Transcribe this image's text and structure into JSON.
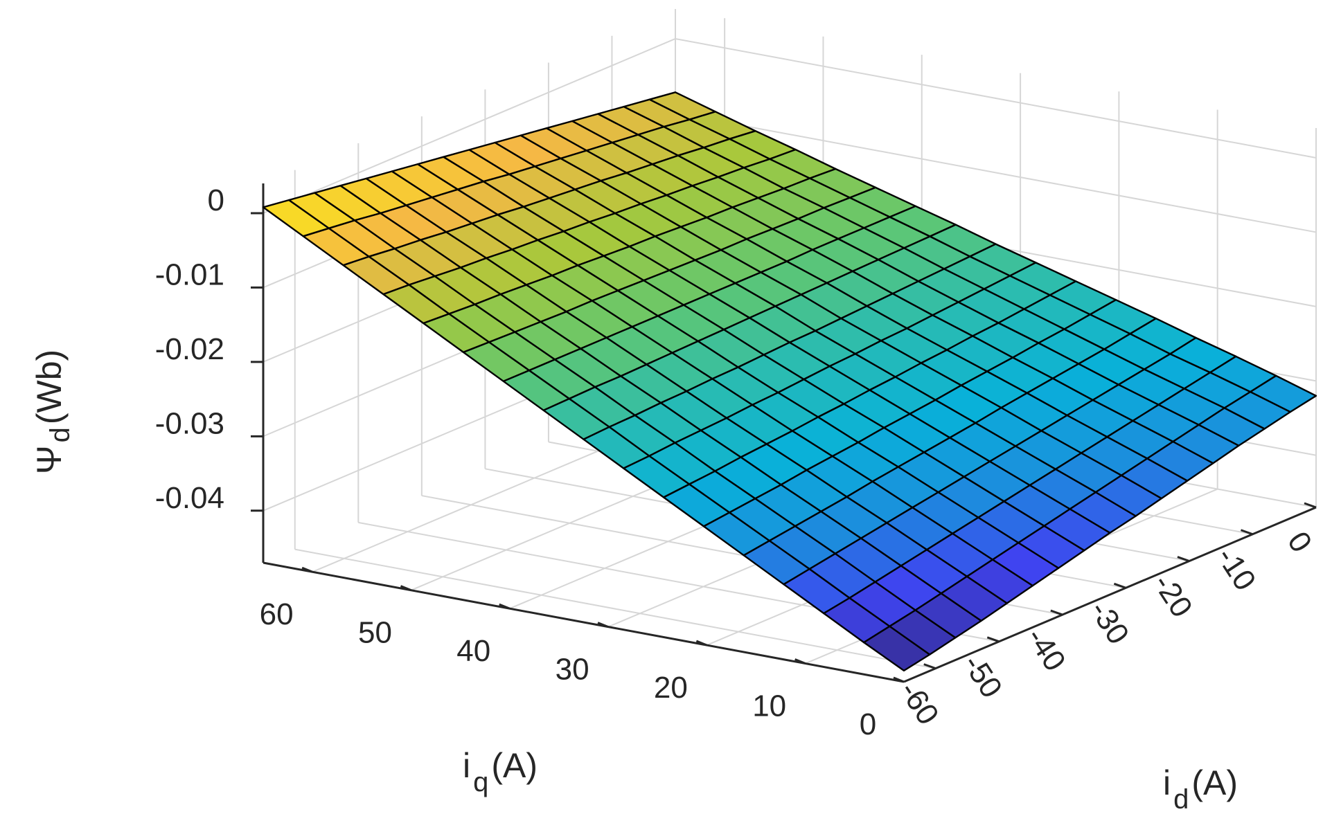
{
  "chart_data": {
    "type": "surface",
    "title": "",
    "xlabel": {
      "main": "i",
      "sub": "d",
      "unit": "(A)"
    },
    "ylabel": {
      "main": "i",
      "sub": "q",
      "unit": "(A)"
    },
    "zlabel": {
      "main": "Ψ",
      "sub": "d",
      "unit": "(Wb)"
    },
    "xlim": [
      -65,
      0
    ],
    "ylim": [
      0,
      65
    ],
    "zlim": [
      -0.047,
      0.004
    ],
    "x_ticks": [
      {
        "value": -60,
        "label": "-60"
      },
      {
        "value": -50,
        "label": "-50"
      },
      {
        "value": -40,
        "label": "-40"
      },
      {
        "value": -30,
        "label": "-30"
      },
      {
        "value": -20,
        "label": "-20"
      },
      {
        "value": -10,
        "label": "-10"
      },
      {
        "value": 0,
        "label": "0"
      }
    ],
    "y_ticks": [
      {
        "value": 0,
        "label": "0"
      },
      {
        "value": 10,
        "label": "10"
      },
      {
        "value": 20,
        "label": "20"
      },
      {
        "value": 30,
        "label": "30"
      },
      {
        "value": 40,
        "label": "40"
      },
      {
        "value": 50,
        "label": "50"
      },
      {
        "value": 60,
        "label": "60"
      }
    ],
    "z_ticks": [
      {
        "value": -0.04,
        "label": "-0.04"
      },
      {
        "value": -0.03,
        "label": "-0.03"
      },
      {
        "value": -0.02,
        "label": "-0.02"
      },
      {
        "value": -0.01,
        "label": "-0.01"
      },
      {
        "value": 0,
        "label": "0"
      }
    ],
    "grid": true,
    "colormap": "parula",
    "colormap_stops": [
      "#352a87",
      "#3f44f0",
      "#1c8ddd",
      "#09b1d9",
      "#2bbcb0",
      "#62c76f",
      "#a8c83c",
      "#f5b845",
      "#f9e71b"
    ],
    "mesh_color": "#000000",
    "x": [
      -65,
      -60.94,
      -56.88,
      -52.81,
      -48.75,
      -44.69,
      -40.63,
      -36.56,
      -32.5,
      -28.44,
      -24.38,
      -20.31,
      -16.25,
      -12.19,
      -8.13,
      -4.06,
      0
    ],
    "y": [
      0,
      4.06,
      8.13,
      12.19,
      16.25,
      20.31,
      24.38,
      28.44,
      32.5,
      36.56,
      40.63,
      44.69,
      48.75,
      52.81,
      56.88,
      60.94,
      65
    ],
    "z": [
      [
        -0.0455,
        -0.0448,
        -0.044,
        -0.0432,
        -0.0423,
        -0.0414,
        -0.0405,
        -0.0396,
        -0.0387,
        -0.0379,
        -0.037,
        -0.0361,
        -0.0352,
        -0.0343,
        -0.0335,
        -0.0327,
        -0.032
      ],
      [
        -0.0427,
        -0.042,
        -0.0413,
        -0.0405,
        -0.0397,
        -0.0389,
        -0.0381,
        -0.0373,
        -0.0365,
        -0.0357,
        -0.0349,
        -0.0341,
        -0.0333,
        -0.0325,
        -0.0317,
        -0.031,
        -0.0303
      ],
      [
        -0.0398,
        -0.0392,
        -0.0385,
        -0.0378,
        -0.0371,
        -0.0364,
        -0.0357,
        -0.035,
        -0.0343,
        -0.0336,
        -0.0329,
        -0.0322,
        -0.0315,
        -0.0308,
        -0.0301,
        -0.0294,
        -0.0287
      ],
      [
        -0.0369,
        -0.0363,
        -0.0357,
        -0.0351,
        -0.0345,
        -0.0339,
        -0.0333,
        -0.0327,
        -0.0321,
        -0.0315,
        -0.0309,
        -0.0303,
        -0.0297,
        -0.0291,
        -0.0285,
        -0.0279,
        -0.0272
      ],
      [
        -0.034,
        -0.0335,
        -0.033,
        -0.0325,
        -0.032,
        -0.0314,
        -0.0309,
        -0.0304,
        -0.0299,
        -0.0294,
        -0.0288,
        -0.0283,
        -0.0278,
        -0.0273,
        -0.0268,
        -0.0262,
        -0.0256
      ],
      [
        -0.0311,
        -0.0307,
        -0.0303,
        -0.0299,
        -0.0294,
        -0.029,
        -0.0286,
        -0.0281,
        -0.0277,
        -0.0273,
        -0.0268,
        -0.0264,
        -0.026,
        -0.0255,
        -0.0251,
        -0.0246,
        -0.0241
      ],
      [
        -0.0282,
        -0.0279,
        -0.0276,
        -0.0272,
        -0.0269,
        -0.0266,
        -0.0262,
        -0.0259,
        -0.0255,
        -0.0252,
        -0.0248,
        -0.0245,
        -0.0241,
        -0.0238,
        -0.0234,
        -0.023,
        -0.0226
      ],
      [
        -0.0253,
        -0.0251,
        -0.0248,
        -0.0246,
        -0.0244,
        -0.0241,
        -0.0239,
        -0.0236,
        -0.0233,
        -0.0231,
        -0.0228,
        -0.0226,
        -0.0223,
        -0.022,
        -0.0217,
        -0.0214,
        -0.0211
      ],
      [
        -0.0224,
        -0.0222,
        -0.0221,
        -0.0219,
        -0.0218,
        -0.0216,
        -0.0215,
        -0.0213,
        -0.0211,
        -0.021,
        -0.0208,
        -0.0206,
        -0.0204,
        -0.0202,
        -0.02,
        -0.0198,
        -0.0196
      ],
      [
        -0.0195,
        -0.0194,
        -0.0193,
        -0.0193,
        -0.0192,
        -0.0191,
        -0.019,
        -0.0189,
        -0.0188,
        -0.0187,
        -0.0186,
        -0.0185,
        -0.0184,
        -0.0183,
        -0.0182,
        -0.0181,
        -0.018
      ],
      [
        -0.0166,
        -0.0166,
        -0.0166,
        -0.0166,
        -0.0166,
        -0.0166,
        -0.0166,
        -0.0166,
        -0.0166,
        -0.0166,
        -0.0166,
        -0.0166,
        -0.0165,
        -0.0165,
        -0.0165,
        -0.0165,
        -0.0165
      ],
      [
        -0.0137,
        -0.0138,
        -0.0139,
        -0.014,
        -0.0141,
        -0.0141,
        -0.0142,
        -0.0143,
        -0.0144,
        -0.0145,
        -0.0146,
        -0.0146,
        -0.0147,
        -0.0148,
        -0.0148,
        -0.0149,
        -0.015
      ],
      [
        -0.0108,
        -0.011,
        -0.0112,
        -0.0113,
        -0.0115,
        -0.0117,
        -0.0118,
        -0.012,
        -0.0122,
        -0.0123,
        -0.0125,
        -0.0127,
        -0.0128,
        -0.013,
        -0.0132,
        -0.0133,
        -0.0135
      ],
      [
        -0.0079,
        -0.0081,
        -0.0084,
        -0.0087,
        -0.0089,
        -0.0092,
        -0.0094,
        -0.0097,
        -0.0099,
        -0.0102,
        -0.0104,
        -0.0107,
        -0.0109,
        -0.0112,
        -0.0114,
        -0.0117,
        -0.0119
      ],
      [
        -0.005,
        -0.0053,
        -0.0057,
        -0.006,
        -0.0064,
        -0.0067,
        -0.007,
        -0.0074,
        -0.0077,
        -0.008,
        -0.0083,
        -0.0087,
        -0.009,
        -0.0093,
        -0.0097,
        -0.01,
        -0.0104
      ],
      [
        -0.0021,
        -0.0025,
        -0.0029,
        -0.0034,
        -0.0038,
        -0.0042,
        -0.0046,
        -0.005,
        -0.0055,
        -0.0059,
        -0.0063,
        -0.0067,
        -0.0071,
        -0.0075,
        -0.0079,
        -0.0084,
        -0.0088
      ],
      [
        0.0008,
        0.0003,
        -0.0002,
        -0.0007,
        -0.0012,
        -0.0017,
        -0.0022,
        -0.0027,
        -0.0032,
        -0.0037,
        -0.0042,
        -0.0047,
        -0.0052,
        -0.0057,
        -0.0062,
        -0.0067,
        -0.0072
      ]
    ]
  }
}
